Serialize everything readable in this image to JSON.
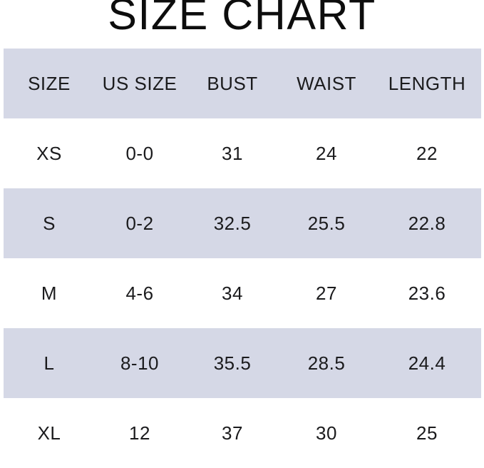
{
  "title": "SIZE CHART",
  "chart_data": {
    "type": "table",
    "title": "SIZE CHART",
    "columns": [
      "SIZE",
      "US SIZE",
      "BUST",
      "WAIST",
      "LENGTH"
    ],
    "rows": [
      [
        "XS",
        "0-0",
        "31",
        "24",
        "22"
      ],
      [
        "S",
        "0-2",
        "32.5",
        "25.5",
        "22.8"
      ],
      [
        "M",
        "4-6",
        "34",
        "27",
        "23.6"
      ],
      [
        "L",
        "8-10",
        "35.5",
        "28.5",
        "24.4"
      ],
      [
        "XL",
        "12",
        "37",
        "30",
        "25"
      ]
    ],
    "layout": {
      "header_position": "top",
      "row_striping": "header and every second data row shaded, starting with white XS row",
      "last_row_clipped": true
    }
  },
  "colors": {
    "header_bg": "#d5d8e6",
    "alt_row_bg": "#d5d8e6",
    "row_bg": "#ffffff",
    "text": "#1b1b1d",
    "title_text": "#0d0d0d",
    "page_bg": "#ffffff"
  }
}
